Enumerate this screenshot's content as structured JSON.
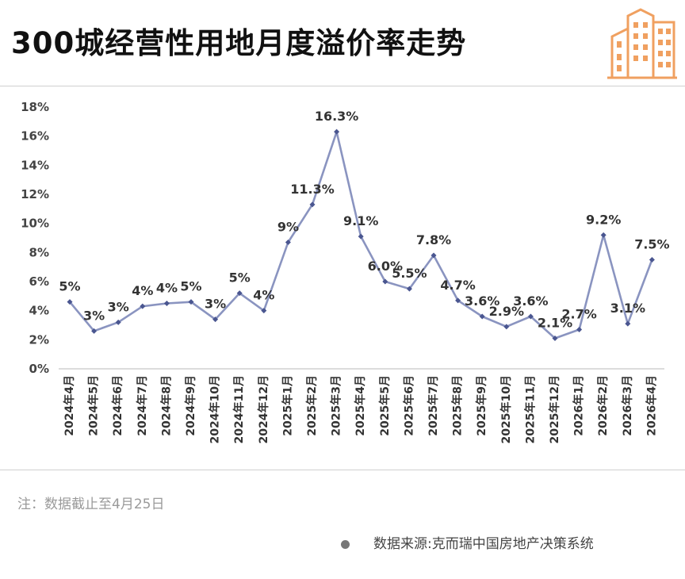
{
  "header": {
    "title": "300城经营性用地月度溢价率走势",
    "logo_icon": "buildings-icon",
    "accent_color": "#f0a060"
  },
  "chart_data": {
    "type": "line",
    "title": "300城经营性用地月度溢价率走势",
    "xlabel": "",
    "ylabel": "",
    "ylim": [
      0,
      18
    ],
    "yticks": [
      "0%",
      "2%",
      "4%",
      "6%",
      "8%",
      "10%",
      "12%",
      "14%",
      "16%",
      "18%"
    ],
    "grid": false,
    "line_color": "#8a94c0",
    "categories": [
      "2024年4月",
      "2024年5月",
      "2024年6月",
      "2024年7月",
      "2024年8月",
      "2024年9月",
      "2024年10月",
      "2024年11月",
      "2024年12月",
      "2025年1月",
      "2025年2月",
      "2025年3月",
      "2025年4月",
      "2025年5月",
      "2025年6月",
      "2025年7月",
      "2025年8月",
      "2025年9月",
      "2025年10月",
      "2025年11月",
      "2025年12月",
      "2026年1月",
      "2026年2月",
      "2026年3月",
      "2026年4月"
    ],
    "values": [
      4.6,
      2.6,
      3.2,
      4.3,
      4.5,
      4.6,
      3.4,
      5.2,
      4.0,
      8.7,
      11.3,
      16.3,
      9.1,
      6.0,
      5.5,
      7.8,
      4.7,
      3.6,
      2.9,
      3.6,
      2.1,
      2.7,
      9.2,
      3.1,
      7.5
    ],
    "data_labels": [
      "5%",
      "3%",
      "3%",
      "4%",
      "4%",
      "5%",
      "3%",
      "5%",
      "4%",
      "9%",
      "11.3%",
      "16.3%",
      "9.1%",
      "6.0%",
      "5.5%",
      "7.8%",
      "4.7%",
      "3.6%",
      "2.9%",
      "3.6%",
      "2.1%",
      "2.7%",
      "9.2%",
      "3.1%",
      "7.5%"
    ]
  },
  "footer": {
    "note": "注：数据截止至4月25日",
    "source": "数据来源:克而瑞中国房地产决策系统"
  }
}
